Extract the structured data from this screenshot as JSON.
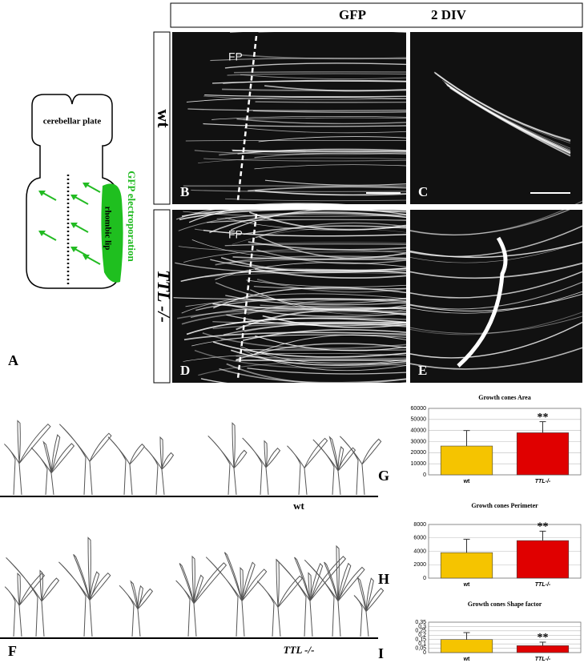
{
  "header": {
    "title": "GFP",
    "subtitle": "2 DIV"
  },
  "panel_a": {
    "label": "A",
    "region": "cerebellar plate",
    "lip": "rhombic lip",
    "method": "GFP electroporation"
  },
  "rows": [
    "wt",
    "TTL -/-"
  ],
  "images": [
    {
      "label": "B",
      "marker": "FP"
    },
    {
      "label": "C"
    },
    {
      "label": "D",
      "marker": "FP"
    },
    {
      "label": "E"
    }
  ],
  "panel_f": {
    "label": "F",
    "groups": [
      "wt",
      "TTL -/-"
    ]
  },
  "chart_data": [
    {
      "type": "bar",
      "label": "G",
      "title": "Growth cones Area",
      "categories": [
        "wt",
        "TTL-/-"
      ],
      "values": [
        26000,
        38000
      ],
      "errors": [
        14000,
        10000
      ],
      "colors": [
        "#f5c400",
        "#e00000"
      ],
      "annotation": "**",
      "ylim": [
        0,
        60000
      ],
      "yticks": [
        0,
        10000,
        20000,
        30000,
        40000,
        50000,
        60000
      ]
    },
    {
      "type": "bar",
      "label": "H",
      "title": "Growth cones Perimeter",
      "categories": [
        "wt",
        "TTL-/-"
      ],
      "values": [
        3800,
        5600
      ],
      "errors": [
        2000,
        1400
      ],
      "colors": [
        "#f5c400",
        "#e00000"
      ],
      "annotation": "**",
      "ylim": [
        0,
        8000
      ],
      "yticks": [
        0,
        2000,
        4000,
        6000,
        8000
      ]
    },
    {
      "type": "bar",
      "label": "I",
      "title": "Growth cones Shape factor",
      "categories": [
        "wt",
        "TTL-/-"
      ],
      "values": [
        0.15,
        0.08
      ],
      "errors": [
        0.08,
        0.04
      ],
      "colors": [
        "#f5c400",
        "#e00000"
      ],
      "annotation": "**",
      "ylim": [
        0,
        0.35
      ],
      "yticks": [
        0,
        {
          "value": 0.05,
          "label": "0,05"
        },
        {
          "value": 0.1,
          "label": "0,1"
        },
        {
          "value": 0.15,
          "label": "0,15"
        },
        {
          "value": 0.2,
          "label": "0,2"
        },
        {
          "value": 0.25,
          "label": "0,25"
        },
        {
          "value": 0.3,
          "label": "0,3"
        },
        {
          "value": 0.35,
          "label": "0,35"
        }
      ]
    }
  ]
}
